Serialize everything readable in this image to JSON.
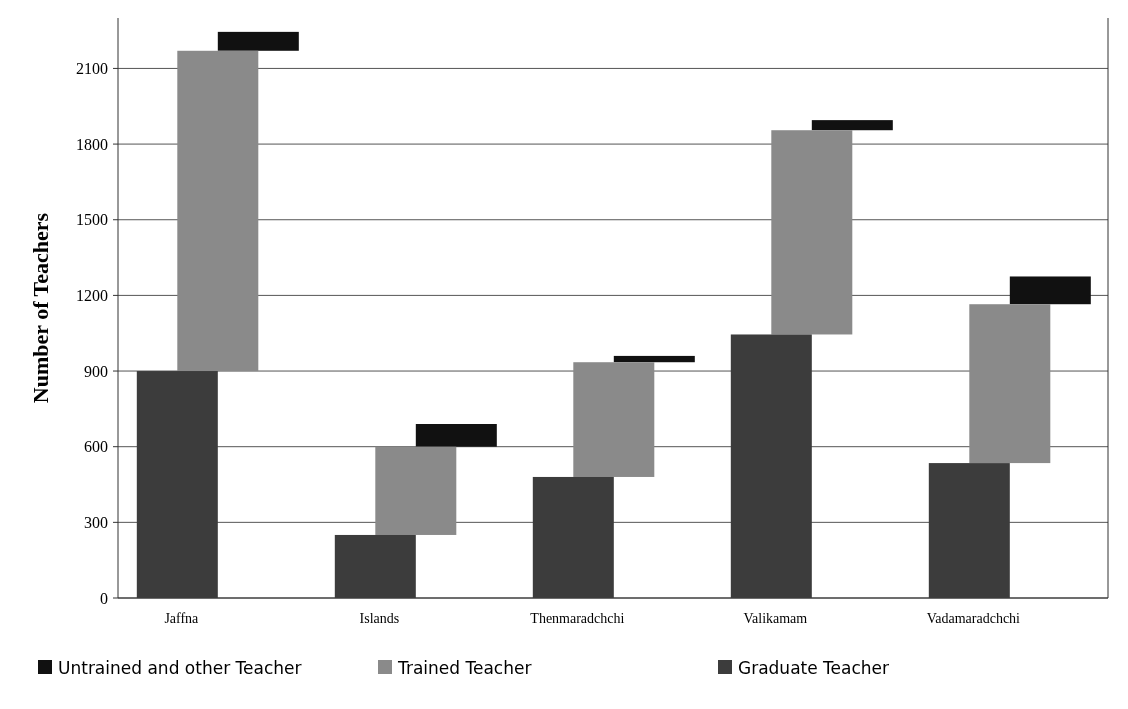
{
  "chart_data": {
    "type": "bar",
    "ylabel": "Number of Teachers",
    "categories": [
      "Jaffna",
      "Islands",
      "Thenmaradchchi",
      "Valikamam",
      "Vadamaradchchi"
    ],
    "series": [
      {
        "name": "Untrained and other Teacher",
        "color": "#111111",
        "base": [
          2170,
          600,
          935,
          1855,
          1165
        ],
        "values": [
          75,
          90,
          25,
          40,
          110
        ]
      },
      {
        "name": "Trained Teacher",
        "color": "#8a8a8a",
        "base": [
          900,
          250,
          480,
          1045,
          535
        ],
        "values": [
          1270,
          350,
          455,
          810,
          630
        ]
      },
      {
        "name": "Graduate Teacher",
        "color": "#3c3c3c",
        "base": [
          0,
          0,
          0,
          0,
          0
        ],
        "values": [
          900,
          250,
          480,
          1045,
          535
        ]
      }
    ],
    "ylim": [
      0,
      2300
    ],
    "yticks": [
      0,
      300,
      600,
      900,
      1200,
      1500,
      1800,
      2100
    ],
    "grid": "y",
    "legend": "bottom"
  }
}
